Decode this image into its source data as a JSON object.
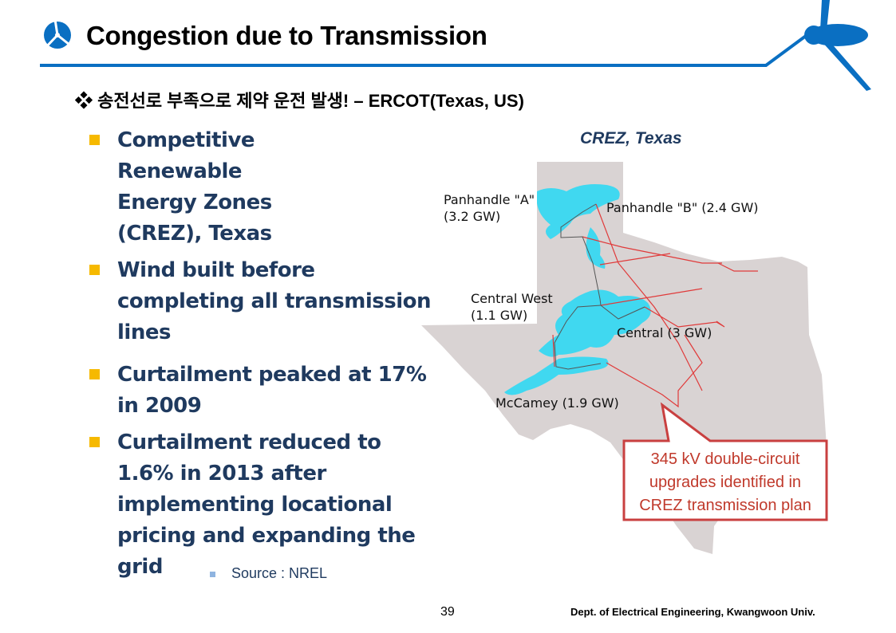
{
  "header": {
    "title": "Congestion due to Transmission",
    "subtitle": "❖ 송전선로 부족으로 제약 운전 발생! – ERCOT(Texas, US)",
    "logo": "wind-turbine-logo",
    "accent_color": "#0a6fc2"
  },
  "bullets": [
    {
      "text": "Competitive Renewable Energy Zones (CREZ), Texas"
    },
    {
      "text": "Wind built before completing all transmission lines"
    },
    {
      "text": "Curtailment peaked at 17% in 2009"
    },
    {
      "text": "Curtailment reduced to  1.6% in 2013 after implementing locational pricing and expanding the grid"
    }
  ],
  "source": "Source : NREL",
  "map": {
    "title": "CREZ, Texas",
    "zones": [
      {
        "name": "Panhandle \"A\"",
        "capacity": "(3.2 GW)"
      },
      {
        "name": "Panhandle \"B\" (2.4 GW)"
      },
      {
        "name": "Central West",
        "capacity": "(1.1 GW)"
      },
      {
        "name": "Central (3 GW)"
      },
      {
        "name": "McCamey (1.9 GW)"
      }
    ],
    "callout": [
      "345 kV double-circuit",
      "upgrades identified in",
      "CREZ transmission plan"
    ]
  },
  "footer": {
    "page_number": "39",
    "department": "Dept. of Electrical Engineering, Kwangwoon Univ."
  }
}
